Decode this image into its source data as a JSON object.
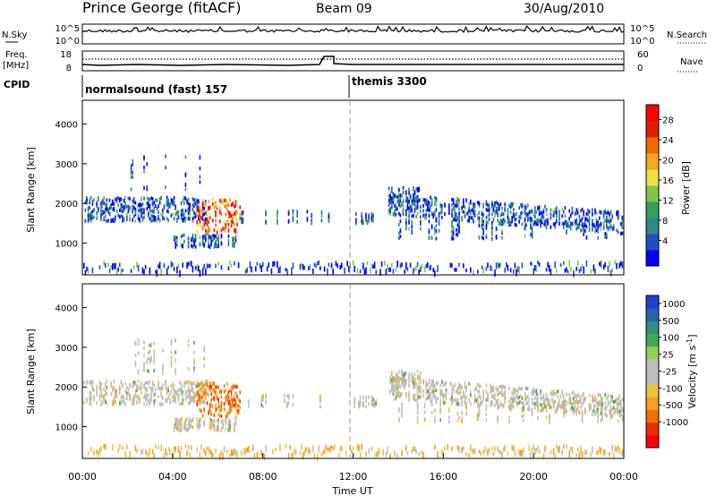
{
  "header": {
    "title": "Prince George (fitACF)",
    "beam": "Beam 09",
    "date": "30/Aug/2010"
  },
  "panels": {
    "nsky": {
      "label": "N.Sky",
      "ticks": [
        "10^5",
        "10^0"
      ],
      "right_label": "N.Search",
      "right_ticks": [
        "10^5",
        "10^0"
      ]
    },
    "freq": {
      "label": "Freq.",
      "unit": "[MHz]",
      "ticks": [
        "18",
        "8"
      ],
      "right_label": "Nave",
      "right_ticks": [
        "60",
        "0"
      ]
    },
    "cpid": {
      "label": "CPID",
      "segments": [
        {
          "text": "normalsound (fast) 157",
          "start_hour": 0
        },
        {
          "text": "themis 3300",
          "start_hour": 12
        }
      ]
    }
  },
  "chart_data": [
    {
      "type": "heatmap",
      "name_panel": "power",
      "ylabel": "Slant Range [km]",
      "yticks": [
        1000,
        2000,
        3000,
        4000
      ],
      "ylim": [
        200,
        4600
      ],
      "xlim_hours": [
        0,
        24
      ],
      "colorbar": {
        "label": "Power [dB]",
        "ticks": [
          "4",
          "8",
          "12",
          "16",
          "20",
          "24",
          "28"
        ],
        "colors": [
          "#0000ff",
          "#1e4fc8",
          "#2b8a8a",
          "#33a05a",
          "#7dc84a",
          "#f0e040",
          "#f5a623",
          "#f06a00",
          "#e02000",
          "#ff0000"
        ]
      },
      "features": [
        {
          "from_hour": 0,
          "to_hour": 5.5,
          "range_km": [
            1500,
            2200
          ],
          "level": "8-16 dB"
        },
        {
          "from_hour": 5.5,
          "to_hour": 7,
          "range_km": [
            1200,
            2100
          ],
          "level": "20-28 dB"
        },
        {
          "from_hour": 13.5,
          "to_hour": 24,
          "range_km": [
            1300,
            2300
          ],
          "level": "8-16 dB"
        }
      ]
    },
    {
      "type": "heatmap",
      "name_panel": "velocity",
      "ylabel": "Slant Range [km]",
      "yticks": [
        1000,
        2000,
        3000,
        4000
      ],
      "ylim": [
        200,
        4600
      ],
      "xlim_hours": [
        0,
        24
      ],
      "xticks": [
        "00:00",
        "04:00",
        "08:00",
        "12:00",
        "16:00",
        "20:00",
        "00:00"
      ],
      "xlabel": "Time UT",
      "colorbar": {
        "label": "Velocity [m s^-1]",
        "ticks": [
          "1000",
          "500",
          "100",
          "25",
          "-25",
          "-100",
          "-500",
          "-1000"
        ],
        "colors": [
          "#2040d0",
          "#2a60b0",
          "#2f8f80",
          "#40a850",
          "#8fd050",
          "#bdbdbd",
          "#bdbdbd",
          "#f0c040",
          "#f5a020",
          "#f07000",
          "#e83000",
          "#ff0000"
        ]
      },
      "features": [
        {
          "from_hour": 0,
          "to_hour": 5,
          "range_km": [
            1500,
            2100
          ],
          "level": "-25 to 25 m/s"
        },
        {
          "from_hour": 5,
          "to_hour": 7,
          "range_km": [
            1300,
            2000
          ],
          "level": "-100 to -500 m/s"
        },
        {
          "from_hour": 13.5,
          "to_hour": 24,
          "range_km": [
            1400,
            2400
          ],
          "level": "-25 to 25 m/s"
        }
      ]
    }
  ]
}
